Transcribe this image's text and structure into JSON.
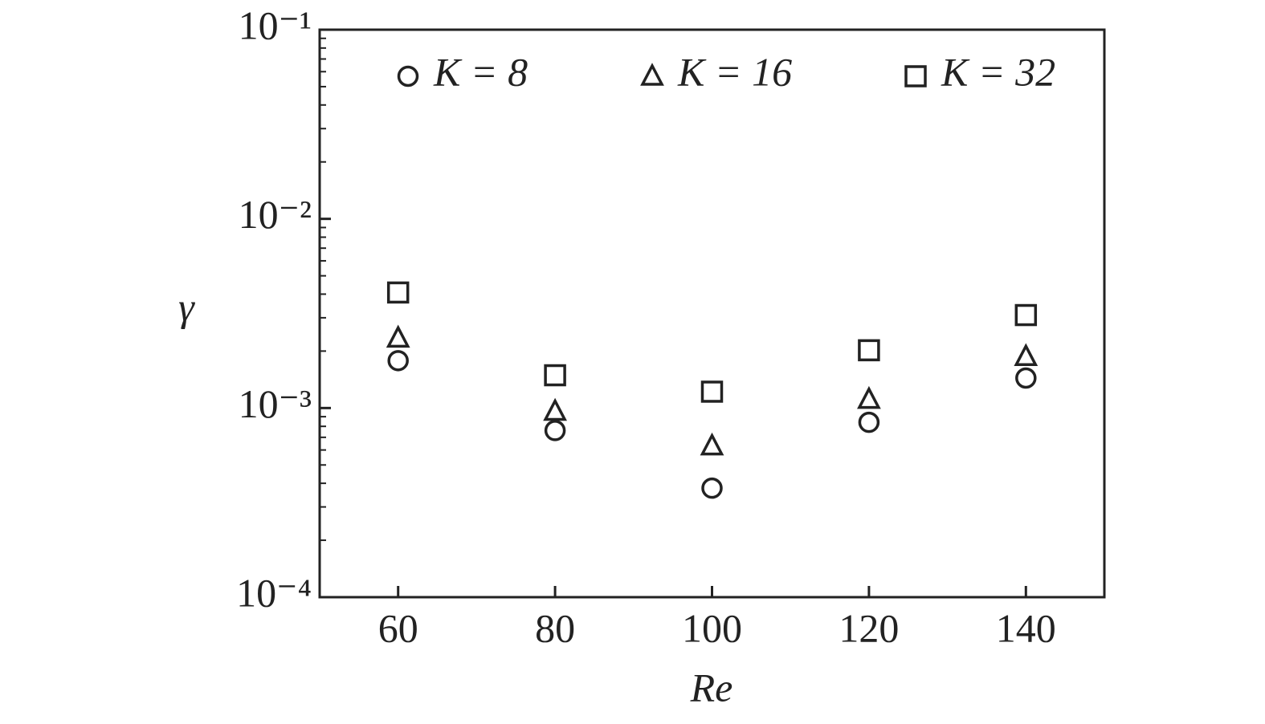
{
  "chart_data": {
    "type": "scatter",
    "x_label": "Re",
    "y_label": "γ",
    "x": [
      60,
      80,
      100,
      120,
      140
    ],
    "series": [
      {
        "name": "K = 8",
        "color": "#222222",
        "marker": "circle",
        "values": [
          0.00178,
          0.00076,
          0.000377,
          0.00084,
          0.00144
        ]
      },
      {
        "name": "K = 16",
        "color": "#222222",
        "marker": "triangle",
        "values": [
          0.00234,
          0.00096,
          0.00063,
          0.00111,
          0.00187
        ]
      },
      {
        "name": "K = 32",
        "color": "#222222",
        "marker": "square",
        "values": [
          0.00408,
          0.00149,
          0.00122,
          0.00202,
          0.0031
        ]
      }
    ],
    "xlim": [
      50,
      150
    ],
    "xticks": [
      60,
      80,
      100,
      120,
      140
    ],
    "ylim": [
      0.0001,
      0.1
    ],
    "ylog": true,
    "yticks": [
      {
        "value": 0.0001,
        "label": "10⁻⁴"
      },
      {
        "value": 0.001,
        "label": "10⁻³"
      },
      {
        "value": 0.01,
        "label": "10⁻²"
      },
      {
        "value": 0.1,
        "label": "10⁻¹"
      }
    ],
    "yminorticks": [
      0.0002,
      0.0003,
      0.0004,
      0.0005,
      0.0006,
      0.0007,
      0.0008,
      0.0009,
      0.002,
      0.003,
      0.004,
      0.005,
      0.006,
      0.007,
      0.008,
      0.009,
      0.02,
      0.03,
      0.04,
      0.05,
      0.06,
      0.07,
      0.08,
      0.09
    ],
    "legend": "top",
    "grid": false
  }
}
